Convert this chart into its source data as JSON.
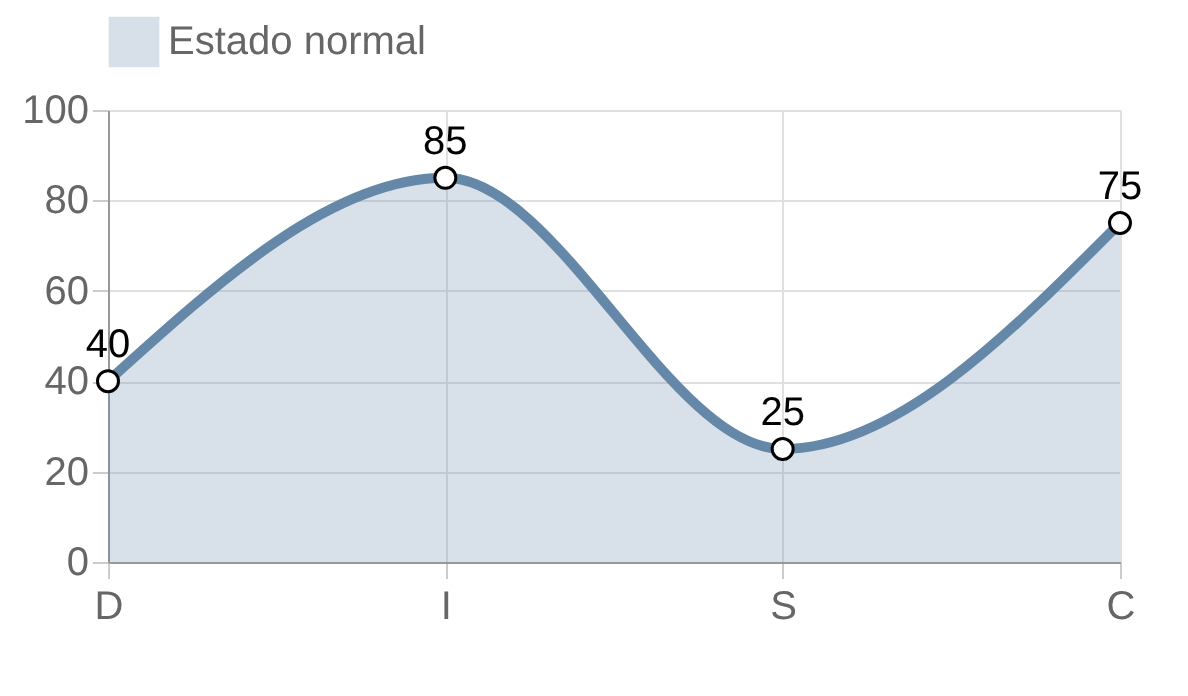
{
  "chart_data": {
    "type": "area",
    "categories": [
      "D",
      "I",
      "S",
      "C"
    ],
    "series": [
      {
        "name": "Estado normal",
        "color": "#6588a8",
        "values": [
          40,
          85,
          25,
          75
        ]
      }
    ],
    "ylim": [
      0,
      100
    ],
    "yticks": [
      0,
      20,
      40,
      60,
      80,
      100
    ],
    "grid": true,
    "legend": "top",
    "marker": "circle",
    "data_labels": true
  }
}
